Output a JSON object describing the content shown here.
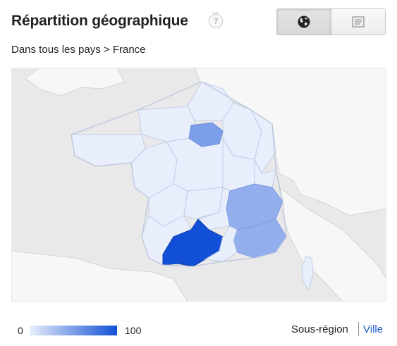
{
  "header": {
    "title": "Répartition géographique",
    "help_glyph": "?"
  },
  "view_toggle": {
    "options": [
      {
        "name": "map-view",
        "icon": "globe-icon",
        "active": true
      },
      {
        "name": "list-view",
        "icon": "list-icon",
        "active": false
      }
    ]
  },
  "breadcrumb": {
    "text": "Dans tous les pays > France"
  },
  "colors": {
    "low": "#e8eefb",
    "mid": "#93aeec",
    "high": "#1150d6",
    "land_outside": "#f7f7f7",
    "sea": "#e9e9e9"
  },
  "legend": {
    "min_label": "0",
    "max_label": "100"
  },
  "level_switch": {
    "subregion_label": "Sous-région",
    "city_label": "Ville"
  }
}
